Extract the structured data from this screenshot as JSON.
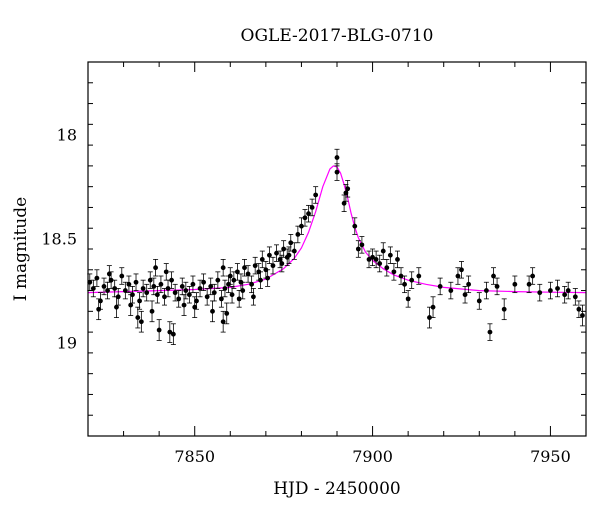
{
  "chart_data": {
    "type": "scatter",
    "title": "OGLE-2017-BLG-0710",
    "xlabel": "HJD - 2450000",
    "ylabel": "I magnitude",
    "xlim": [
      7820,
      7960
    ],
    "ylim": [
      19.45,
      17.65
    ],
    "y_inverted": true,
    "x_ticks": [
      7850,
      7900,
      7950
    ],
    "x_tick_labels": [
      "7850",
      "7900",
      "7950"
    ],
    "y_ticks": [
      18,
      18.5,
      19
    ],
    "y_tick_labels": [
      "18",
      "18.5",
      "19"
    ],
    "grid": false,
    "legend": "none",
    "colors": {
      "points": "#000000",
      "model": "#ff00ff",
      "axes": "#000000"
    },
    "model": {
      "name": "",
      "type": "line",
      "x": [
        7820,
        7830,
        7840,
        7850,
        7860,
        7865,
        7870,
        7875,
        7878,
        7880,
        7882,
        7884,
        7886,
        7888,
        7889,
        7890,
        7891,
        7892,
        7893,
        7894,
        7895,
        7896,
        7898,
        7900,
        7903,
        7906,
        7910,
        7915,
        7920,
        7930,
        7940,
        7950,
        7960
      ],
      "y": [
        18.76,
        18.755,
        18.75,
        18.745,
        18.735,
        18.72,
        18.695,
        18.645,
        18.595,
        18.545,
        18.47,
        18.37,
        18.25,
        18.165,
        18.15,
        18.155,
        18.185,
        18.24,
        18.305,
        18.38,
        18.445,
        18.495,
        18.565,
        18.605,
        18.645,
        18.675,
        18.7,
        18.72,
        18.735,
        18.75,
        18.755,
        18.758,
        18.76
      ]
    },
    "series": [
      {
        "name": "",
        "points": [
          {
            "x": 7820.5,
            "y": 18.71,
            "e": 0.04
          },
          {
            "x": 7821.5,
            "y": 18.74,
            "e": 0.04
          },
          {
            "x": 7822.5,
            "y": 18.69,
            "e": 0.04
          },
          {
            "x": 7823.5,
            "y": 18.8,
            "e": 0.04
          },
          {
            "x": 7824.5,
            "y": 18.73,
            "e": 0.04
          },
          {
            "x": 7825.5,
            "y": 18.75,
            "e": 0.04
          },
          {
            "x": 7826.5,
            "y": 18.7,
            "e": 0.04
          },
          {
            "x": 7827.5,
            "y": 18.74,
            "e": 0.04
          },
          {
            "x": 7828.5,
            "y": 18.78,
            "e": 0.04
          },
          {
            "x": 7829.5,
            "y": 18.68,
            "e": 0.04
          },
          {
            "x": 7830.5,
            "y": 18.75,
            "e": 0.04
          },
          {
            "x": 7831.5,
            "y": 18.72,
            "e": 0.04
          },
          {
            "x": 7832.5,
            "y": 18.77,
            "e": 0.04
          },
          {
            "x": 7833.5,
            "y": 18.71,
            "e": 0.04
          },
          {
            "x": 7834.5,
            "y": 18.8,
            "e": 0.04
          },
          {
            "x": 7835.5,
            "y": 18.74,
            "e": 0.04
          },
          {
            "x": 7836.5,
            "y": 18.76,
            "e": 0.04
          },
          {
            "x": 7837.5,
            "y": 18.7,
            "e": 0.04
          },
          {
            "x": 7838.5,
            "y": 18.73,
            "e": 0.04
          },
          {
            "x": 7839.5,
            "y": 18.77,
            "e": 0.04
          },
          {
            "x": 7840.5,
            "y": 18.72,
            "e": 0.04
          },
          {
            "x": 7841.5,
            "y": 18.78,
            "e": 0.04
          },
          {
            "x": 7842.5,
            "y": 18.74,
            "e": 0.04
          },
          {
            "x": 7843.5,
            "y": 18.7,
            "e": 0.04
          },
          {
            "x": 7844.5,
            "y": 18.76,
            "e": 0.04
          },
          {
            "x": 7845.5,
            "y": 18.79,
            "e": 0.04
          },
          {
            "x": 7846.5,
            "y": 18.73,
            "e": 0.04
          },
          {
            "x": 7847.5,
            "y": 18.75,
            "e": 0.04
          },
          {
            "x": 7848.5,
            "y": 18.77,
            "e": 0.04
          },
          {
            "x": 7849.5,
            "y": 18.72,
            "e": 0.04
          },
          {
            "x": 7850.5,
            "y": 18.8,
            "e": 0.04
          },
          {
            "x": 7851.5,
            "y": 18.74,
            "e": 0.04
          },
          {
            "x": 7852.5,
            "y": 18.71,
            "e": 0.04
          },
          {
            "x": 7853.5,
            "y": 18.78,
            "e": 0.04
          },
          {
            "x": 7854.5,
            "y": 18.73,
            "e": 0.04
          },
          {
            "x": 7855.5,
            "y": 18.76,
            "e": 0.04
          },
          {
            "x": 7856.5,
            "y": 18.7,
            "e": 0.04
          },
          {
            "x": 7857.5,
            "y": 18.79,
            "e": 0.04
          },
          {
            "x": 7858.5,
            "y": 18.74,
            "e": 0.04
          },
          {
            "x": 7859.5,
            "y": 18.72,
            "e": 0.04
          },
          {
            "x": 7834,
            "y": 18.88,
            "e": 0.05
          },
          {
            "x": 7835,
            "y": 18.9,
            "e": 0.05
          },
          {
            "x": 7838,
            "y": 18.85,
            "e": 0.05
          },
          {
            "x": 7840,
            "y": 18.94,
            "e": 0.05
          },
          {
            "x": 7843,
            "y": 18.95,
            "e": 0.05
          },
          {
            "x": 7844,
            "y": 18.96,
            "e": 0.05
          },
          {
            "x": 7847,
            "y": 18.82,
            "e": 0.05
          },
          {
            "x": 7850,
            "y": 18.83,
            "e": 0.05
          },
          {
            "x": 7855,
            "y": 18.85,
            "e": 0.05
          },
          {
            "x": 7858,
            "y": 18.9,
            "e": 0.05
          },
          {
            "x": 7859,
            "y": 18.86,
            "e": 0.05
          },
          {
            "x": 7823,
            "y": 18.84,
            "e": 0.05
          },
          {
            "x": 7828,
            "y": 18.83,
            "e": 0.05
          },
          {
            "x": 7832,
            "y": 18.82,
            "e": 0.05
          },
          {
            "x": 7839,
            "y": 18.64,
            "e": 0.04
          },
          {
            "x": 7842,
            "y": 18.66,
            "e": 0.04
          },
          {
            "x": 7858,
            "y": 18.64,
            "e": 0.04
          },
          {
            "x": 7860,
            "y": 18.68,
            "e": 0.04
          },
          {
            "x": 7826,
            "y": 18.67,
            "e": 0.04
          },
          {
            "x": 7861,
            "y": 18.7,
            "e": 0.04
          },
          {
            "x": 7862,
            "y": 18.66,
            "e": 0.04
          },
          {
            "x": 7863,
            "y": 18.71,
            "e": 0.04
          },
          {
            "x": 7864,
            "y": 18.64,
            "e": 0.04
          },
          {
            "x": 7865,
            "y": 18.67,
            "e": 0.04
          },
          {
            "x": 7866,
            "y": 18.72,
            "e": 0.04
          },
          {
            "x": 7867,
            "y": 18.63,
            "e": 0.04
          },
          {
            "x": 7868,
            "y": 18.66,
            "e": 0.04
          },
          {
            "x": 7869,
            "y": 18.6,
            "e": 0.04
          },
          {
            "x": 7870,
            "y": 18.65,
            "e": 0.04
          },
          {
            "x": 7871,
            "y": 18.58,
            "e": 0.04
          },
          {
            "x": 7872,
            "y": 18.63,
            "e": 0.04
          },
          {
            "x": 7873,
            "y": 18.57,
            "e": 0.04
          },
          {
            "x": 7874,
            "y": 18.6,
            "e": 0.04
          },
          {
            "x": 7875,
            "y": 18.55,
            "e": 0.04
          },
          {
            "x": 7876,
            "y": 18.59,
            "e": 0.04
          },
          {
            "x": 7877,
            "y": 18.52,
            "e": 0.04
          },
          {
            "x": 7878,
            "y": 18.56,
            "e": 0.04
          },
          {
            "x": 7879,
            "y": 18.48,
            "e": 0.04
          },
          {
            "x": 7880,
            "y": 18.44,
            "e": 0.04
          },
          {
            "x": 7881,
            "y": 18.4,
            "e": 0.04
          },
          {
            "x": 7882,
            "y": 18.38,
            "e": 0.04
          },
          {
            "x": 7883,
            "y": 18.35,
            "e": 0.04
          },
          {
            "x": 7884,
            "y": 18.29,
            "e": 0.04
          },
          {
            "x": 7866.5,
            "y": 18.78,
            "e": 0.04
          },
          {
            "x": 7863.5,
            "y": 18.75,
            "e": 0.04
          },
          {
            "x": 7868.5,
            "y": 18.7,
            "e": 0.04
          },
          {
            "x": 7870.5,
            "y": 18.69,
            "e": 0.04
          },
          {
            "x": 7860.5,
            "y": 18.77,
            "e": 0.04
          },
          {
            "x": 7862.5,
            "y": 18.79,
            "e": 0.04
          },
          {
            "x": 7874.5,
            "y": 18.62,
            "e": 0.04
          },
          {
            "x": 7876.5,
            "y": 18.58,
            "e": 0.04
          },
          {
            "x": 7890,
            "y": 18.11,
            "e": 0.04
          },
          {
            "x": 7890,
            "y": 18.18,
            "e": 0.04
          },
          {
            "x": 7892,
            "y": 18.33,
            "e": 0.04
          },
          {
            "x": 7893,
            "y": 18.26,
            "e": 0.04
          },
          {
            "x": 7892.5,
            "y": 18.28,
            "e": 0.04
          },
          {
            "x": 7895,
            "y": 18.44,
            "e": 0.04
          },
          {
            "x": 7896,
            "y": 18.55,
            "e": 0.04
          },
          {
            "x": 7897,
            "y": 18.53,
            "e": 0.04
          },
          {
            "x": 7899,
            "y": 18.6,
            "e": 0.04
          },
          {
            "x": 7900,
            "y": 18.59,
            "e": 0.04
          },
          {
            "x": 7901,
            "y": 18.6,
            "e": 0.04
          },
          {
            "x": 7902,
            "y": 18.62,
            "e": 0.04
          },
          {
            "x": 7903,
            "y": 18.56,
            "e": 0.04
          },
          {
            "x": 7904,
            "y": 18.64,
            "e": 0.04
          },
          {
            "x": 7905,
            "y": 18.58,
            "e": 0.04
          },
          {
            "x": 7906,
            "y": 18.66,
            "e": 0.04
          },
          {
            "x": 7907,
            "y": 18.6,
            "e": 0.04
          },
          {
            "x": 7908,
            "y": 18.68,
            "e": 0.04
          },
          {
            "x": 7909,
            "y": 18.72,
            "e": 0.04
          },
          {
            "x": 7910,
            "y": 18.79,
            "e": 0.04
          },
          {
            "x": 7911,
            "y": 18.7,
            "e": 0.04
          },
          {
            "x": 7913,
            "y": 18.68,
            "e": 0.04
          },
          {
            "x": 7916,
            "y": 18.88,
            "e": 0.05
          },
          {
            "x": 7917,
            "y": 18.83,
            "e": 0.05
          },
          {
            "x": 7919,
            "y": 18.73,
            "e": 0.04
          },
          {
            "x": 7922,
            "y": 18.75,
            "e": 0.04
          },
          {
            "x": 7924,
            "y": 18.68,
            "e": 0.04
          },
          {
            "x": 7925,
            "y": 18.65,
            "e": 0.04
          },
          {
            "x": 7926,
            "y": 18.77,
            "e": 0.04
          },
          {
            "x": 7927,
            "y": 18.72,
            "e": 0.04
          },
          {
            "x": 7930,
            "y": 18.8,
            "e": 0.04
          },
          {
            "x": 7932,
            "y": 18.75,
            "e": 0.04
          },
          {
            "x": 7933,
            "y": 18.95,
            "e": 0.04
          },
          {
            "x": 7934,
            "y": 18.68,
            "e": 0.04
          },
          {
            "x": 7935,
            "y": 18.73,
            "e": 0.04
          },
          {
            "x": 7937,
            "y": 18.84,
            "e": 0.05
          },
          {
            "x": 7940,
            "y": 18.72,
            "e": 0.04
          },
          {
            "x": 7944,
            "y": 18.72,
            "e": 0.04
          },
          {
            "x": 7945,
            "y": 18.68,
            "e": 0.04
          },
          {
            "x": 7947,
            "y": 18.76,
            "e": 0.04
          },
          {
            "x": 7950,
            "y": 18.75,
            "e": 0.04
          },
          {
            "x": 7952,
            "y": 18.74,
            "e": 0.04
          },
          {
            "x": 7954,
            "y": 18.77,
            "e": 0.04
          },
          {
            "x": 7955,
            "y": 18.75,
            "e": 0.04
          },
          {
            "x": 7957,
            "y": 18.78,
            "e": 0.04
          },
          {
            "x": 7958,
            "y": 18.84,
            "e": 0.04
          },
          {
            "x": 7959,
            "y": 18.87,
            "e": 0.05
          }
        ]
      }
    ]
  }
}
